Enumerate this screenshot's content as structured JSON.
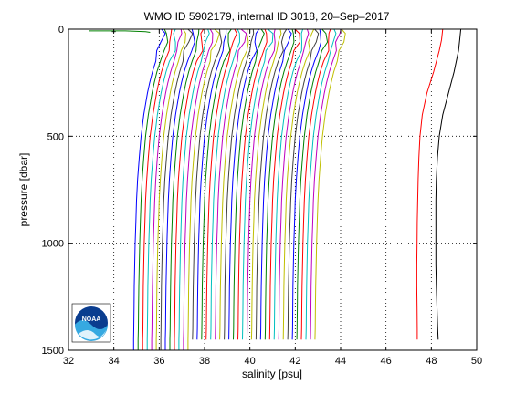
{
  "chart_data": {
    "type": "line",
    "title": "WMO ID 5902179, internal ID 3018, 20–Sep–2017",
    "xlabel": "salinity [psu]",
    "ylabel": "pressure [dbar]",
    "xlim": [
      32,
      50
    ],
    "ylim": [
      1500,
      0
    ],
    "y_reversed": true,
    "x_ticks": [
      "32",
      "34",
      "36",
      "38",
      "40",
      "42",
      "44",
      "46",
      "48",
      "50"
    ],
    "y_ticks": [
      "0",
      "500",
      "1000",
      "1500"
    ],
    "grid": "dotted",
    "logo": "NOAA",
    "profile_offset": 0.2,
    "profile_shape": {
      "pressure": [
        0,
        20,
        60,
        100,
        150,
        200,
        250,
        300,
        350,
        400,
        450,
        500,
        600,
        700,
        800,
        900,
        1000,
        1100,
        1200,
        1300,
        1400,
        1450
      ],
      "salinity": [
        36.2,
        36.25,
        36.2,
        36.1,
        35.95,
        35.8,
        35.68,
        35.58,
        35.5,
        35.42,
        35.36,
        35.3,
        35.22,
        35.15,
        35.1,
        35.07,
        35.04,
        35.02,
        35.0,
        34.99,
        34.98,
        34.97
      ]
    },
    "profile_base_salinity": [
      -0.1,
      0.1,
      0.3,
      0.5,
      0.7,
      0.9,
      1.1,
      1.3,
      1.5,
      1.7,
      1.9,
      2.1,
      2.3,
      2.5,
      2.7,
      2.9,
      3.1,
      3.3,
      3.5,
      3.7,
      3.9,
      4.1,
      4.3,
      4.5,
      4.7,
      4.9,
      5.1,
      5.3,
      5.5,
      5.7,
      5.9,
      6.1,
      6.3,
      6.5,
      6.7,
      6.9,
      7.1,
      7.3,
      7.5,
      7.7,
      7.9
    ],
    "profile_end_pressure": [
      1500,
      1500,
      1500,
      1500,
      1500,
      1500,
      1500,
      1500,
      1500,
      1500,
      1500,
      1500,
      1500,
      1450,
      1450,
      1450,
      1450,
      1450,
      1450,
      1450,
      1450,
      1450,
      1450,
      1450,
      1450,
      1450,
      1450,
      1450,
      1450,
      1450,
      1450,
      1450,
      1450,
      1450,
      1450,
      1450,
      1450,
      1450,
      1450,
      1450,
      1450
    ],
    "first_profile_surface": {
      "pressure": [
        8,
        8,
        12,
        15
      ],
      "salinity": [
        32.9,
        34.5,
        35.4,
        35.6
      ]
    },
    "color_cycle": [
      "#0000ff",
      "#008000",
      "#ff0000",
      "#00bfbf",
      "#bf00bf",
      "#bfbf00",
      "#404040"
    ],
    "mean_profile": {
      "color": "#ff0000",
      "pressure": [
        0,
        50,
        100,
        200,
        300,
        400,
        500,
        600,
        700,
        800,
        900,
        1000,
        1100,
        1200,
        1300,
        1400,
        1450
      ],
      "salinity": [
        48.5,
        48.45,
        48.35,
        48.1,
        47.8,
        47.6,
        47.5,
        47.45,
        47.42,
        47.4,
        47.38,
        47.37,
        47.36,
        47.36,
        47.37,
        47.38,
        47.38
      ]
    },
    "mean_plus_std_profile": {
      "color": "#000000",
      "pressure": [
        0,
        50,
        100,
        200,
        300,
        400,
        500,
        600,
        700,
        800,
        900,
        1000,
        1100,
        1200,
        1300,
        1400,
        1450
      ],
      "salinity": [
        49.3,
        49.25,
        49.2,
        49.0,
        48.75,
        48.5,
        48.35,
        48.27,
        48.22,
        48.2,
        48.2,
        48.2,
        48.2,
        48.22,
        48.25,
        48.28,
        48.3
      ]
    }
  }
}
